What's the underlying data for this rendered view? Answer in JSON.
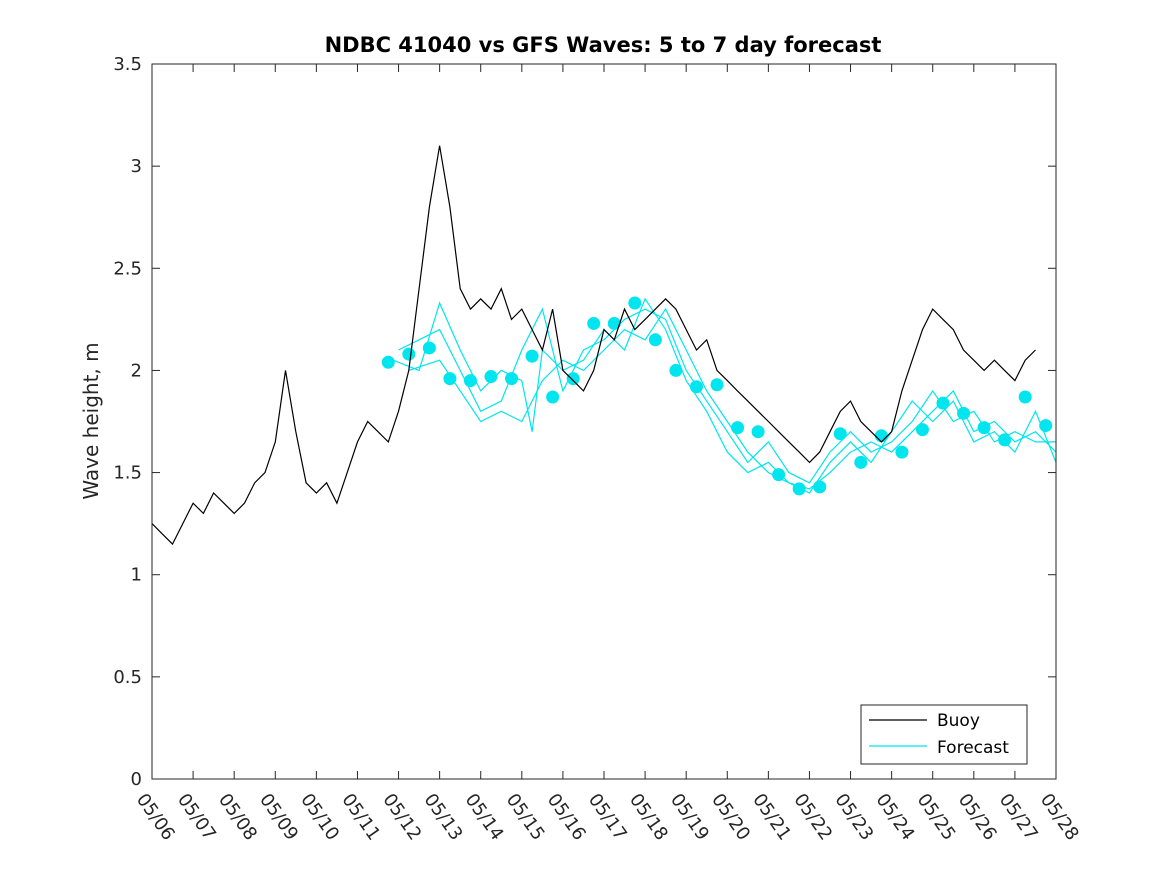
{
  "chart_data": {
    "type": "line",
    "title": "NDBC 41040 vs GFS Waves: 5 to 7 day forecast",
    "xlabel": "",
    "ylabel": "Wave height, m",
    "x_tick_labels": [
      "05/06",
      "05/07",
      "05/08",
      "05/09",
      "05/10",
      "05/11",
      "05/12",
      "05/13",
      "05/14",
      "05/15",
      "05/16",
      "05/17",
      "05/18",
      "05/19",
      "05/20",
      "05/21",
      "05/22",
      "05/23",
      "05/24",
      "05/25",
      "05/26",
      "05/27",
      "05/28"
    ],
    "y_ticks": [
      0,
      0.5,
      1,
      1.5,
      2,
      2.5,
      3,
      3.5
    ],
    "y_tick_labels": [
      "0",
      "0.5",
      "1",
      "1.5",
      "2",
      "2.5",
      "3",
      "3.5"
    ],
    "ylim": [
      0,
      3.5
    ],
    "xlim": [
      "05/06",
      "05/28"
    ],
    "grid": false,
    "legend_position": "bottom-right",
    "colors": {
      "buoy": "#000000",
      "forecast": "#00e5ee",
      "axes": "#262626"
    },
    "series": [
      {
        "name": "Buoy",
        "style": "line",
        "points": [
          [
            "05/06 00:00",
            1.25
          ],
          [
            "05/06 06:00",
            1.2
          ],
          [
            "05/06 12:00",
            1.15
          ],
          [
            "05/06 18:00",
            1.25
          ],
          [
            "05/07 00:00",
            1.35
          ],
          [
            "05/07 06:00",
            1.3
          ],
          [
            "05/07 12:00",
            1.4
          ],
          [
            "05/07 18:00",
            1.35
          ],
          [
            "05/08 00:00",
            1.3
          ],
          [
            "05/08 06:00",
            1.35
          ],
          [
            "05/08 12:00",
            1.45
          ],
          [
            "05/08 18:00",
            1.5
          ],
          [
            "05/09 00:00",
            1.65
          ],
          [
            "05/09 06:00",
            2.0
          ],
          [
            "05/09 12:00",
            1.7
          ],
          [
            "05/09 18:00",
            1.45
          ],
          [
            "05/10 00:00",
            1.4
          ],
          [
            "05/10 06:00",
            1.45
          ],
          [
            "05/10 12:00",
            1.35
          ],
          [
            "05/10 18:00",
            1.5
          ],
          [
            "05/11 00:00",
            1.65
          ],
          [
            "05/11 06:00",
            1.75
          ],
          [
            "05/11 12:00",
            1.7
          ],
          [
            "05/11 18:00",
            1.65
          ],
          [
            "05/12 00:00",
            1.8
          ],
          [
            "05/12 06:00",
            2.0
          ],
          [
            "05/12 12:00",
            2.4
          ],
          [
            "05/12 18:00",
            2.8
          ],
          [
            "05/13 00:00",
            3.1
          ],
          [
            "05/13 06:00",
            2.8
          ],
          [
            "05/13 12:00",
            2.4
          ],
          [
            "05/13 18:00",
            2.3
          ],
          [
            "05/14 00:00",
            2.35
          ],
          [
            "05/14 06:00",
            2.3
          ],
          [
            "05/14 12:00",
            2.4
          ],
          [
            "05/14 18:00",
            2.25
          ],
          [
            "05/15 00:00",
            2.3
          ],
          [
            "05/15 06:00",
            2.2
          ],
          [
            "05/15 12:00",
            2.1
          ],
          [
            "05/15 18:00",
            2.3
          ],
          [
            "05/16 00:00",
            2.0
          ],
          [
            "05/16 06:00",
            1.95
          ],
          [
            "05/16 12:00",
            1.9
          ],
          [
            "05/16 18:00",
            2.0
          ],
          [
            "05/17 00:00",
            2.2
          ],
          [
            "05/17 06:00",
            2.15
          ],
          [
            "05/17 12:00",
            2.3
          ],
          [
            "05/17 18:00",
            2.2
          ],
          [
            "05/18 00:00",
            2.25
          ],
          [
            "05/18 06:00",
            2.3
          ],
          [
            "05/18 12:00",
            2.35
          ],
          [
            "05/18 18:00",
            2.3
          ],
          [
            "05/19 00:00",
            2.2
          ],
          [
            "05/19 06:00",
            2.1
          ],
          [
            "05/19 12:00",
            2.15
          ],
          [
            "05/19 18:00",
            2.0
          ],
          [
            "05/20 00:00",
            1.95
          ],
          [
            "05/20 06:00",
            1.9
          ],
          [
            "05/20 12:00",
            1.85
          ],
          [
            "05/20 18:00",
            1.8
          ],
          [
            "05/21 00:00",
            1.75
          ],
          [
            "05/21 06:00",
            1.7
          ],
          [
            "05/21 12:00",
            1.65
          ],
          [
            "05/21 18:00",
            1.6
          ],
          [
            "05/22 00:00",
            1.55
          ],
          [
            "05/22 06:00",
            1.6
          ],
          [
            "05/22 12:00",
            1.7
          ],
          [
            "05/22 18:00",
            1.8
          ],
          [
            "05/23 00:00",
            1.85
          ],
          [
            "05/23 06:00",
            1.75
          ],
          [
            "05/23 12:00",
            1.7
          ],
          [
            "05/23 18:00",
            1.65
          ],
          [
            "05/24 00:00",
            1.7
          ],
          [
            "05/24 06:00",
            1.9
          ],
          [
            "05/24 12:00",
            2.05
          ],
          [
            "05/24 18:00",
            2.2
          ],
          [
            "05/25 00:00",
            2.3
          ],
          [
            "05/25 06:00",
            2.25
          ],
          [
            "05/25 12:00",
            2.2
          ],
          [
            "05/25 18:00",
            2.1
          ],
          [
            "05/26 00:00",
            2.05
          ],
          [
            "05/26 06:00",
            2.0
          ],
          [
            "05/26 12:00",
            2.05
          ],
          [
            "05/26 18:00",
            2.0
          ],
          [
            "05/27 00:00",
            1.95
          ],
          [
            "05/27 06:00",
            2.05
          ],
          [
            "05/27 12:00",
            2.1
          ]
        ]
      },
      {
        "name": "Forecast",
        "style": "markers",
        "points": [
          [
            "05/11 18:00",
            2.04
          ],
          [
            "05/12 06:00",
            2.08
          ],
          [
            "05/12 18:00",
            2.11
          ],
          [
            "05/13 06:00",
            1.96
          ],
          [
            "05/13 18:00",
            1.95
          ],
          [
            "05/14 06:00",
            1.97
          ],
          [
            "05/14 18:00",
            1.96
          ],
          [
            "05/15 06:00",
            2.07
          ],
          [
            "05/15 18:00",
            1.87
          ],
          [
            "05/16 06:00",
            1.96
          ],
          [
            "05/16 18:00",
            2.23
          ],
          [
            "05/17 06:00",
            2.23
          ],
          [
            "05/17 18:00",
            2.33
          ],
          [
            "05/18 06:00",
            2.15
          ],
          [
            "05/18 18:00",
            2.0
          ],
          [
            "05/19 06:00",
            1.92
          ],
          [
            "05/19 18:00",
            1.93
          ],
          [
            "05/20 06:00",
            1.72
          ],
          [
            "05/20 18:00",
            1.7
          ],
          [
            "05/21 06:00",
            1.49
          ],
          [
            "05/21 18:00",
            1.42
          ],
          [
            "05/22 06:00",
            1.43
          ],
          [
            "05/22 18:00",
            1.69
          ],
          [
            "05/23 06:00",
            1.55
          ],
          [
            "05/23 18:00",
            1.68
          ],
          [
            "05/24 06:00",
            1.6
          ],
          [
            "05/24 18:00",
            1.71
          ],
          [
            "05/25 06:00",
            1.84
          ],
          [
            "05/25 18:00",
            1.79
          ],
          [
            "05/26 06:00",
            1.72
          ],
          [
            "05/26 18:00",
            1.66
          ],
          [
            "05/27 06:00",
            1.87
          ],
          [
            "05/27 18:00",
            1.73
          ]
        ]
      },
      {
        "name": "",
        "style": "line",
        "group": "Forecast",
        "points": [
          [
            "05/11 18:00",
            2.06
          ],
          [
            "05/12 12:00",
            2.0
          ],
          [
            "05/13 00:00",
            2.33
          ],
          [
            "05/13 12:00",
            2.1
          ],
          [
            "05/14 00:00",
            1.9
          ],
          [
            "05/14 12:00",
            2.0
          ],
          [
            "05/15 00:00",
            1.95
          ],
          [
            "05/15 06:00",
            1.7
          ],
          [
            "05/15 12:00",
            2.1
          ],
          [
            "05/16 00:00",
            2.0
          ],
          [
            "05/16 12:00",
            2.05
          ],
          [
            "05/17 00:00",
            2.2
          ],
          [
            "05/17 12:00",
            2.1
          ],
          [
            "05/18 00:00",
            2.35
          ],
          [
            "05/18 12:00",
            2.2
          ],
          [
            "05/19 00:00",
            1.95
          ],
          [
            "05/19 12:00",
            1.8
          ],
          [
            "05/20 00:00",
            1.6
          ],
          [
            "05/20 12:00",
            1.5
          ],
          [
            "05/21 00:00",
            1.55
          ],
          [
            "05/21 12:00",
            1.45
          ],
          [
            "05/22 00:00",
            1.4
          ],
          [
            "05/22 12:00",
            1.55
          ],
          [
            "05/23 00:00",
            1.65
          ],
          [
            "05/23 12:00",
            1.55
          ],
          [
            "05/24 00:00",
            1.7
          ],
          [
            "05/24 12:00",
            1.85
          ],
          [
            "05/25 00:00",
            1.75
          ],
          [
            "05/25 12:00",
            1.85
          ],
          [
            "05/26 00:00",
            1.65
          ],
          [
            "05/26 12:00",
            1.7
          ],
          [
            "05/27 00:00",
            1.6
          ],
          [
            "05/27 12:00",
            1.8
          ],
          [
            "05/28 00:00",
            1.55
          ]
        ]
      },
      {
        "name": "",
        "style": "line",
        "group": "Forecast",
        "points": [
          [
            "05/12 00:00",
            2.1
          ],
          [
            "05/12 12:00",
            2.15
          ],
          [
            "05/13 00:00",
            2.2
          ],
          [
            "05/13 12:00",
            2.0
          ],
          [
            "05/14 00:00",
            1.8
          ],
          [
            "05/14 12:00",
            1.85
          ],
          [
            "05/15 00:00",
            2.1
          ],
          [
            "05/15 12:00",
            2.3
          ],
          [
            "05/16 00:00",
            1.9
          ],
          [
            "05/16 12:00",
            2.1
          ],
          [
            "05/17 00:00",
            2.15
          ],
          [
            "05/17 12:00",
            2.25
          ],
          [
            "05/18 00:00",
            2.3
          ],
          [
            "05/18 12:00",
            2.25
          ],
          [
            "05/19 00:00",
            2.0
          ],
          [
            "05/19 12:00",
            1.85
          ],
          [
            "05/20 00:00",
            1.7
          ],
          [
            "05/20 12:00",
            1.55
          ],
          [
            "05/21 00:00",
            1.65
          ],
          [
            "05/21 12:00",
            1.5
          ],
          [
            "05/22 00:00",
            1.45
          ],
          [
            "05/22 12:00",
            1.6
          ],
          [
            "05/23 00:00",
            1.7
          ],
          [
            "05/23 12:00",
            1.6
          ],
          [
            "05/24 00:00",
            1.65
          ],
          [
            "05/24 12:00",
            1.75
          ],
          [
            "05/25 00:00",
            1.9
          ],
          [
            "05/25 12:00",
            1.75
          ],
          [
            "05/26 00:00",
            1.8
          ],
          [
            "05/26 12:00",
            1.65
          ],
          [
            "05/27 00:00",
            1.7
          ],
          [
            "05/27 12:00",
            1.65
          ],
          [
            "05/28 00:00",
            1.65
          ]
        ]
      },
      {
        "name": "",
        "style": "line",
        "group": "Forecast",
        "points": [
          [
            "05/12 06:00",
            2.0
          ],
          [
            "05/13 00:00",
            2.05
          ],
          [
            "05/13 12:00",
            1.9
          ],
          [
            "05/14 00:00",
            1.75
          ],
          [
            "05/14 12:00",
            1.8
          ],
          [
            "05/15 00:00",
            1.75
          ],
          [
            "05/15 12:00",
            1.95
          ],
          [
            "05/16 00:00",
            2.05
          ],
          [
            "05/16 12:00",
            2.0
          ],
          [
            "05/17 00:00",
            2.1
          ],
          [
            "05/17 12:00",
            2.2
          ],
          [
            "05/18 00:00",
            2.15
          ],
          [
            "05/18 12:00",
            2.3
          ],
          [
            "05/19 00:00",
            2.1
          ],
          [
            "05/19 12:00",
            1.9
          ],
          [
            "05/20 00:00",
            1.75
          ],
          [
            "05/20 12:00",
            1.6
          ],
          [
            "05/21 00:00",
            1.5
          ],
          [
            "05/21 12:00",
            1.45
          ],
          [
            "05/22 00:00",
            1.42
          ],
          [
            "05/22 12:00",
            1.5
          ],
          [
            "05/23 00:00",
            1.6
          ],
          [
            "05/23 12:00",
            1.65
          ],
          [
            "05/24 00:00",
            1.6
          ],
          [
            "05/24 12:00",
            1.7
          ],
          [
            "05/25 00:00",
            1.8
          ],
          [
            "05/25 12:00",
            1.9
          ],
          [
            "05/26 00:00",
            1.7
          ],
          [
            "05/26 12:00",
            1.75
          ],
          [
            "05/27 00:00",
            1.65
          ],
          [
            "05/27 12:00",
            1.7
          ],
          [
            "05/28 00:00",
            1.6
          ]
        ]
      }
    ]
  }
}
